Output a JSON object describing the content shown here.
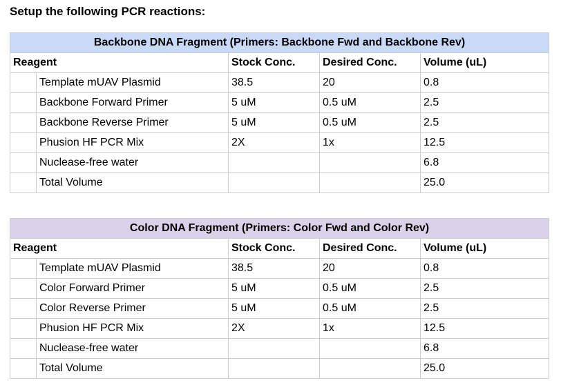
{
  "heading": "Setup the following PCR reactions:",
  "tables": [
    {
      "title": "Backbone DNA Fragment (Primers: Backbone Fwd and Backbone Rev)",
      "header": [
        "Reagent",
        "Stock Conc.",
        "Desired Conc.",
        "Volume (uL)"
      ],
      "rows": [
        [
          "Template mUAV Plasmid",
          "38.5",
          "20",
          "0.8"
        ],
        [
          "Backbone Forward Primer",
          "5 uM",
          "0.5 uM",
          "2.5"
        ],
        [
          "Backbone Reverse Primer",
          "5 uM",
          "0.5 uM",
          "2.5"
        ],
        [
          "Phusion HF PCR Mix",
          "2X",
          "1x",
          "12.5"
        ],
        [
          "Nuclease-free water",
          null,
          null,
          "6.8"
        ],
        [
          "Total Volume",
          null,
          null,
          "25.0"
        ]
      ]
    },
    {
      "title": "Color DNA Fragment (Primers: Color Fwd and Color Rev)",
      "header": [
        "Reagent",
        "Stock Conc.",
        "Desired Conc.",
        "Volume (uL)"
      ],
      "rows": [
        [
          "Template mUAV Plasmid",
          "38.5",
          "20",
          "0.8"
        ],
        [
          "Color Forward Primer",
          "5 uM",
          "0.5 uM",
          "2.5"
        ],
        [
          "Color Reverse Primer",
          "5 uM",
          "0.5 uM",
          "2.5"
        ],
        [
          "Phusion HF PCR Mix",
          "2X",
          "1x",
          "12.5"
        ],
        [
          "Nuclease-free water",
          null,
          null,
          "6.8"
        ],
        [
          "Total Volume",
          null,
          null,
          "25.0"
        ]
      ]
    }
  ]
}
